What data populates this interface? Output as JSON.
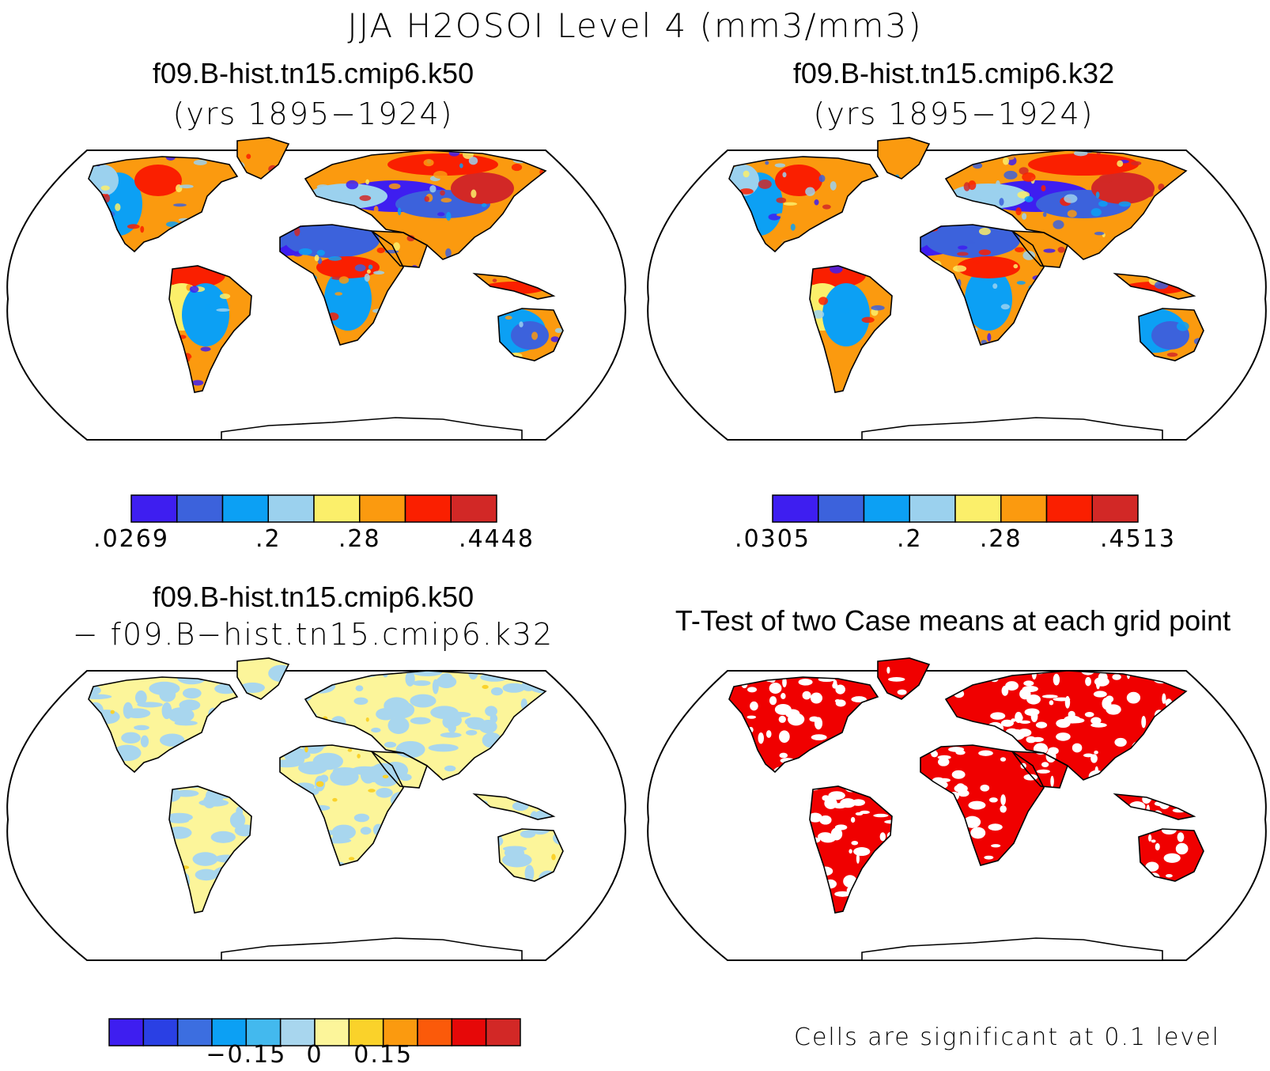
{
  "title": "JJA H2OSOI Level 4 (mm3/mm3)",
  "panels": [
    {
      "id": "top-left",
      "case": "f09.B-hist.tn15.cmip6.k50",
      "subtitle": "(yrs 1895−1924)",
      "colors": [
        "#3e1ef0",
        "#3c62dc",
        "#0ca0f4",
        "#9bd1ee",
        "#fbef6a",
        "#fb9a0f",
        "#fa1f00",
        "#d22826"
      ],
      "tick_labels": [
        ".0269",
        ".2",
        ".28",
        ".4448"
      ],
      "tick_positions": [
        0,
        3,
        5,
        8
      ]
    },
    {
      "id": "top-right",
      "case": "f09.B-hist.tn15.cmip6.k32",
      "subtitle": "(yrs 1895−1924)",
      "colors": [
        "#3e1ef0",
        "#3c62dc",
        "#0ca0f4",
        "#9bd1ee",
        "#fbef6a",
        "#fb9a0f",
        "#fa1f00",
        "#d22826"
      ],
      "tick_labels": [
        ".0305",
        ".2",
        ".28",
        ".4513"
      ],
      "tick_positions": [
        0,
        3,
        5,
        8
      ]
    },
    {
      "id": "bottom-left",
      "case": "f09.B-hist.tn15.cmip6.k50",
      "subtitle": "− f09.B−hist.tn15.cmip6.k32",
      "colors": [
        "#3e1ef0",
        "#2a40e4",
        "#3c6ee0",
        "#0ca0f4",
        "#43b9ee",
        "#a8d6ee",
        "#fcf59a",
        "#fad22a",
        "#fb9a0f",
        "#fb5a0a",
        "#e60808",
        "#d22826"
      ],
      "tick_labels": [
        "−0.15",
        "0",
        "0.15"
      ],
      "tick_positions": [
        4,
        6,
        8
      ]
    },
    {
      "id": "bottom-right",
      "title": "T-Test of two Case means at each grid point",
      "note": "Cells are significant at 0.1 level",
      "significant_color": "#f00000"
    }
  ]
}
